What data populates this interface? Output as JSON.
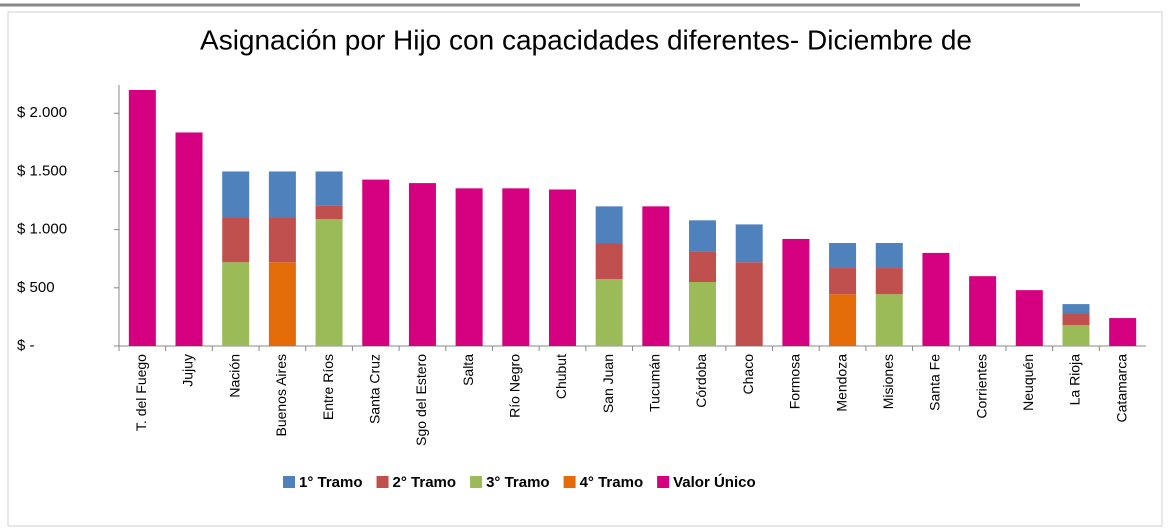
{
  "chart_data": {
    "type": "stacked_bar",
    "title": "Asignación por Hijo con capacidades diferentes- Diciembre de",
    "categories": [
      "T. del Fuego",
      "Jujuy",
      "Nación",
      "Buenos Aires",
      "Entre Ríos",
      "Santa Cruz",
      "Sgo del Estero",
      "Salta",
      "Río Negro",
      "Chubut",
      "San Juan",
      "Tucumán",
      "Córdoba",
      "Chaco",
      "Formosa",
      "Mendoza",
      "Misiones",
      "Santa Fe",
      "Corrientes",
      "Neuquén",
      "La Rioja",
      "Catamarca"
    ],
    "series": [
      {
        "name": "1° Tramo",
        "color": "#4f81bd",
        "values": [
          null,
          null,
          400,
          400,
          290,
          null,
          null,
          null,
          null,
          null,
          315,
          null,
          265,
          325,
          null,
          215,
          215,
          null,
          null,
          null,
          85,
          null
        ]
      },
      {
        "name": "2° Tramo",
        "color": "#c0504d",
        "values": [
          null,
          null,
          380,
          380,
          120,
          null,
          null,
          null,
          null,
          null,
          310,
          null,
          265,
          720,
          null,
          225,
          225,
          null,
          null,
          null,
          95,
          null
        ]
      },
      {
        "name": "3° Tramo",
        "color": "#9bbb59",
        "values": [
          null,
          null,
          720,
          null,
          1090,
          null,
          null,
          null,
          null,
          null,
          575,
          null,
          550,
          null,
          null,
          null,
          445,
          null,
          null,
          null,
          180,
          null
        ]
      },
      {
        "name": "4° Tramo",
        "color": "#e36c09",
        "values": [
          null,
          null,
          null,
          720,
          null,
          null,
          null,
          null,
          null,
          null,
          null,
          null,
          null,
          null,
          null,
          445,
          null,
          null,
          null,
          null,
          null,
          null
        ]
      },
      {
        "name": "Valor Único",
        "color": "#d4007f",
        "values": [
          2200,
          1835,
          null,
          null,
          null,
          1430,
          1400,
          1355,
          1355,
          1345,
          null,
          1200,
          null,
          null,
          920,
          null,
          null,
          800,
          600,
          480,
          null,
          240
        ]
      }
    ],
    "ylim": [
      0,
      2200
    ],
    "yticks": [
      {
        "value": 0,
        "label": "$ -"
      },
      {
        "value": 500,
        "label": "$ 500"
      },
      {
        "value": 1000,
        "label": "$ 1.000"
      },
      {
        "value": 1500,
        "label": "$ 1.500"
      },
      {
        "value": 2000,
        "label": "$ 2.000"
      }
    ],
    "grid": false
  }
}
